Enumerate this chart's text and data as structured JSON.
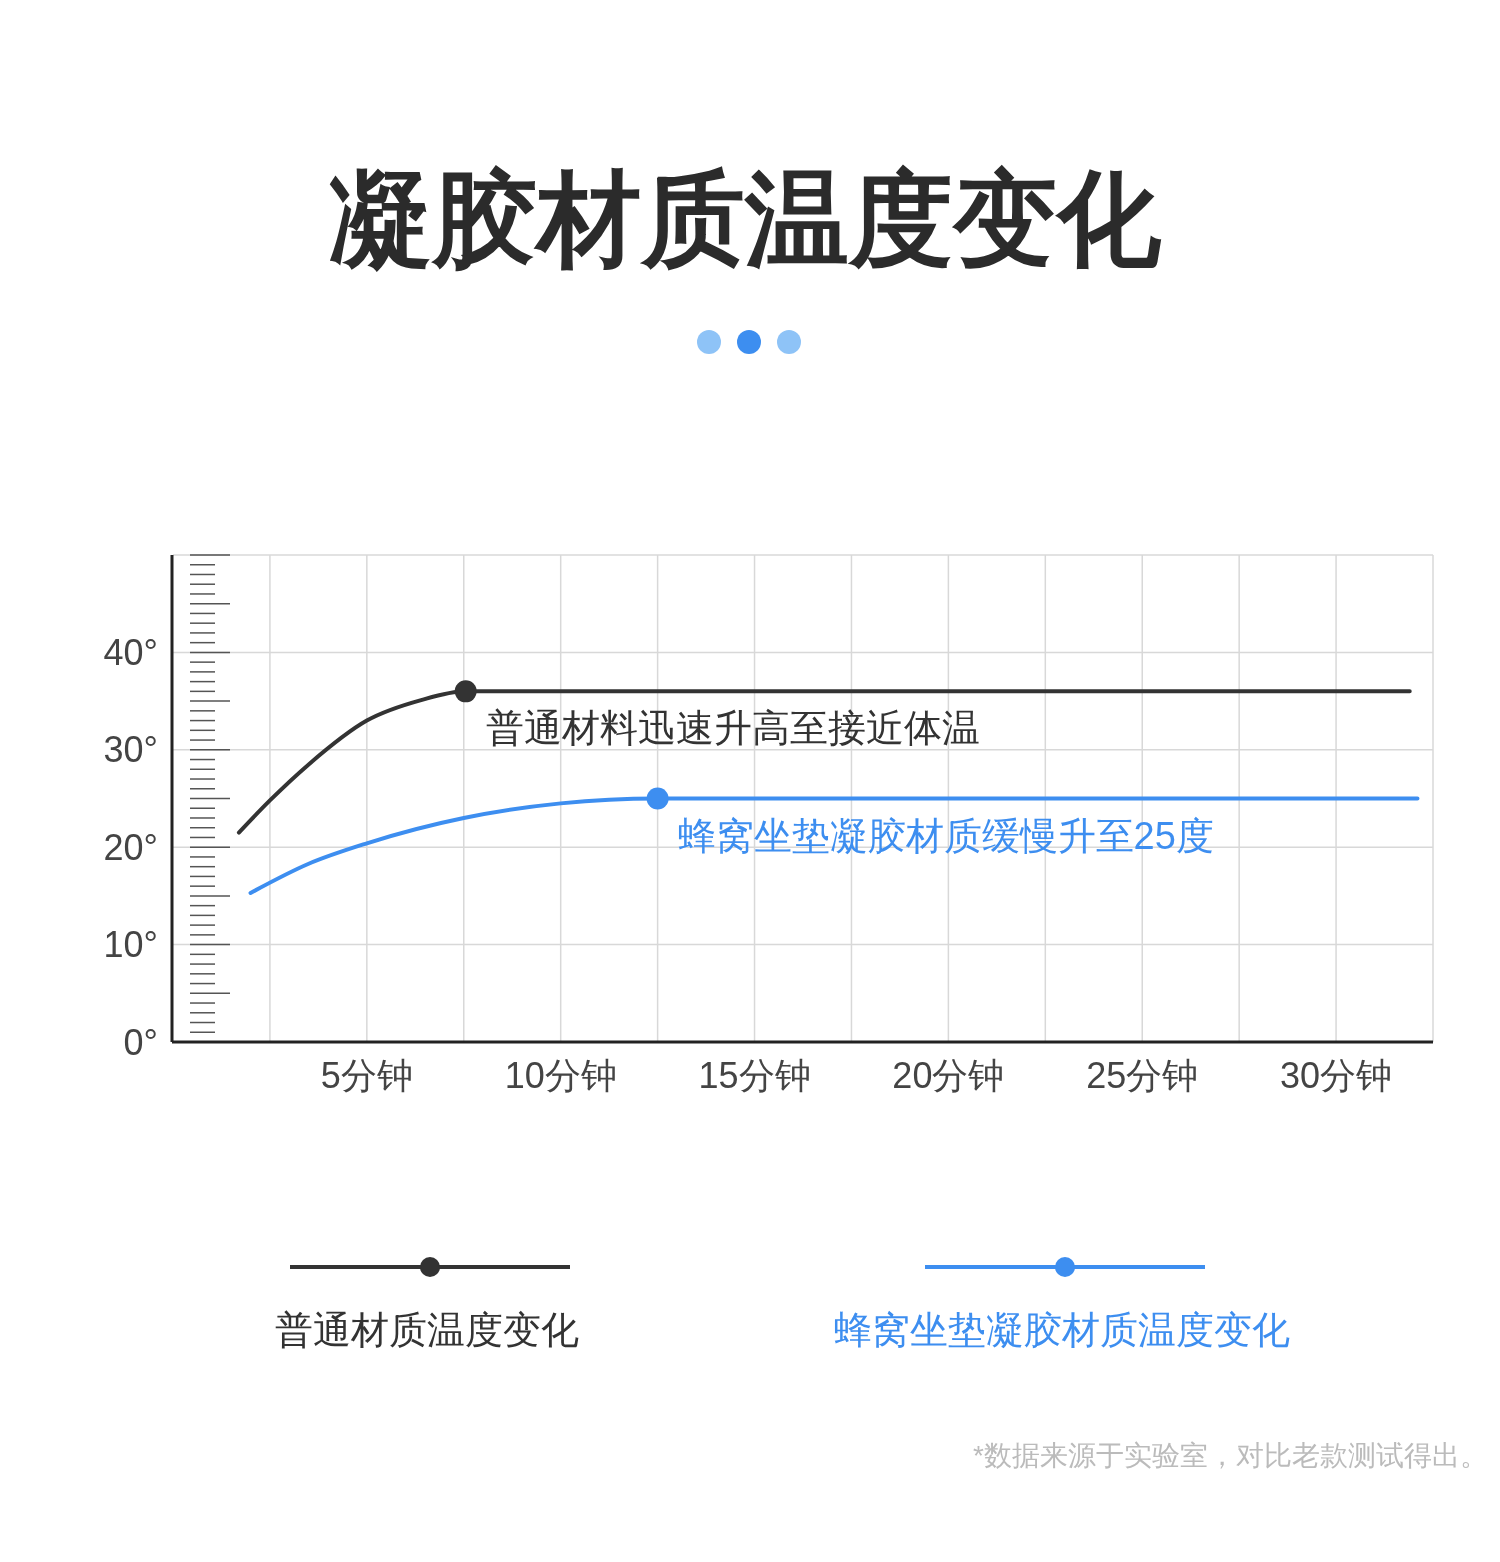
{
  "chart_data": {
    "type": "line",
    "title": "凝胶材质温度变化",
    "xlim": [
      0,
      32.5
    ],
    "xticks": [
      {
        "value": 2.5,
        "label": null
      },
      {
        "value": 5,
        "label": "5分钟"
      },
      {
        "value": 7.5,
        "label": null
      },
      {
        "value": 10,
        "label": "10分钟"
      },
      {
        "value": 12.5,
        "label": null
      },
      {
        "value": 15,
        "label": "15分钟"
      },
      {
        "value": 17.5,
        "label": null
      },
      {
        "value": 20,
        "label": "20分钟"
      },
      {
        "value": 22.5,
        "label": null
      },
      {
        "value": 25,
        "label": "25分钟"
      },
      {
        "value": 27.5,
        "label": null
      },
      {
        "value": 30,
        "label": "30分钟"
      },
      {
        "value": 32.5,
        "label": null
      }
    ],
    "ylim": [
      0,
      50
    ],
    "yticks": [
      {
        "value": 0,
        "label": "0°"
      },
      {
        "value": 10,
        "label": "10°"
      },
      {
        "value": 20,
        "label": "20°"
      },
      {
        "value": 30,
        "label": "30°"
      },
      {
        "value": 40,
        "label": "40°"
      },
      {
        "value": 50,
        "label": null
      }
    ],
    "grid": true,
    "legend": "bottom",
    "marker": "none",
    "line_style": "solid",
    "series": [
      {
        "name": "普通材质温度变化",
        "color": "#333333",
        "x": [
          1.7,
          2.5,
          3.5,
          5,
          6.4,
          7.55,
          31.9
        ],
        "values": [
          21.5,
          24.8,
          28.5,
          33,
          35.1,
          36,
          36
        ]
      },
      {
        "name": "蜂窝坐垫凝胶材质温度变化",
        "color": "#3d8ef0",
        "x": [
          2,
          3.5,
          5,
          7.5,
          10,
          12.5,
          32.1
        ],
        "values": [
          15.3,
          18.3,
          20.4,
          23,
          24.5,
          25,
          25
        ]
      }
    ],
    "annotations": [
      {
        "text": "普通材料迅速升高至接近体温",
        "x": 7.55,
        "y": 36
      },
      {
        "text": "蜂窝坐垫凝胶材质缓慢升至25度",
        "x": 12.5,
        "y": 25
      },
      "*数据来源于实验室，对比老款测试得出。"
    ]
  }
}
